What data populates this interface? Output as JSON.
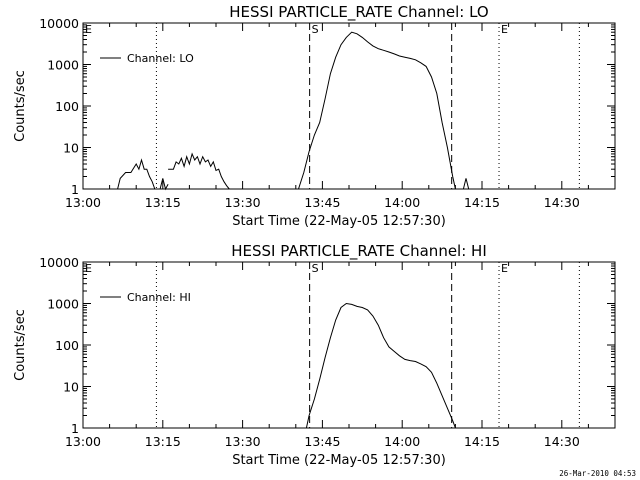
{
  "chart_data": [
    {
      "type": "line",
      "title": "HESSI PARTICLE_RATE Channel: LO",
      "xlabel": "Start Time (22-May-05 12:57:30)",
      "ylabel": "Counts/sec",
      "x_unit": "minutes since 13:00",
      "xlim": [
        0,
        100
      ],
      "ylim": [
        1,
        10000
      ],
      "yscale": "log",
      "xticks": [
        0,
        15,
        30,
        45,
        60,
        75,
        90
      ],
      "xtick_labels": [
        "13:00",
        "13:15",
        "13:30",
        "13:45",
        "14:00",
        "14:15",
        "14:30"
      ],
      "yticks": [
        1,
        10,
        100,
        1000,
        10000
      ],
      "ytick_labels": [
        "1",
        "10",
        "100",
        "1000",
        "10000"
      ],
      "legend": {
        "label": "Channel: LO",
        "position": "top-left"
      },
      "markers": [
        {
          "label": "E",
          "x": 0,
          "style": "dotted"
        },
        {
          "label": "",
          "x": 13.8,
          "style": "dotted"
        },
        {
          "label": "S",
          "x": 42.6,
          "style": "dashed"
        },
        {
          "label": "",
          "x": 69.3,
          "style": "dashed"
        },
        {
          "label": "E",
          "x": 78.2,
          "style": "dotted"
        },
        {
          "label": "",
          "x": 93.3,
          "style": "dotted"
        }
      ],
      "series": [
        {
          "name": "Channel: LO",
          "segments": [
            [
              [
                6.5,
                1
              ],
              [
                7,
                1.8
              ],
              [
                8,
                2.5
              ],
              [
                9,
                2.5
              ],
              [
                10,
                4
              ],
              [
                10.5,
                3
              ],
              [
                11,
                5
              ],
              [
                11.5,
                3
              ],
              [
                12,
                3
              ],
              [
                12.5,
                2
              ],
              [
                13,
                1.5
              ],
              [
                13.5,
                1
              ],
              [
                14.5,
                1
              ],
              [
                15,
                1.8
              ],
              [
                15.5,
                1
              ],
              [
                16,
                1.3
              ]
            ],
            [
              [
                16,
                3
              ],
              [
                17,
                3
              ],
              [
                17.5,
                4.5
              ],
              [
                18,
                4
              ],
              [
                18.5,
                5.5
              ],
              [
                19,
                3.5
              ],
              [
                19.5,
                6
              ],
              [
                20,
                4
              ],
              [
                20.5,
                7
              ],
              [
                21,
                5
              ],
              [
                21.5,
                6
              ],
              [
                22,
                4
              ],
              [
                22.5,
                6
              ],
              [
                23,
                4.5
              ],
              [
                23.5,
                5
              ],
              [
                24,
                3.5
              ],
              [
                24.5,
                4.5
              ],
              [
                25,
                2.8
              ],
              [
                25.5,
                3
              ],
              [
                26,
                2
              ],
              [
                26.5,
                1.5
              ],
              [
                27,
                1.2
              ],
              [
                27.5,
                1
              ]
            ],
            [
              [
                40.5,
                1
              ],
              [
                41.5,
                2.5
              ],
              [
                42.5,
                8
              ],
              [
                43.5,
                20
              ],
              [
                44.5,
                40
              ],
              [
                45.5,
                150
              ],
              [
                46.5,
                600
              ],
              [
                47.5,
                1500
              ],
              [
                48.5,
                3000
              ],
              [
                49.5,
                4500
              ],
              [
                50.5,
                6000
              ],
              [
                51.5,
                5500
              ],
              [
                52.5,
                4500
              ],
              [
                53.5,
                3500
              ],
              [
                54.5,
                2800
              ],
              [
                55.5,
                2400
              ],
              [
                56.5,
                2200
              ],
              [
                57.5,
                2000
              ],
              [
                58.5,
                1800
              ],
              [
                59.5,
                1600
              ],
              [
                60.5,
                1500
              ],
              [
                61.5,
                1400
              ],
              [
                62.5,
                1300
              ],
              [
                63.5,
                1100
              ],
              [
                64.5,
                900
              ],
              [
                65.5,
                500
              ],
              [
                66.5,
                200
              ],
              [
                67.5,
                40
              ],
              [
                68.5,
                10
              ],
              [
                69.5,
                2
              ],
              [
                70,
                1
              ]
            ],
            [
              [
                71.5,
                1
              ],
              [
                72,
                1.8
              ],
              [
                72.5,
                1
              ]
            ]
          ]
        }
      ]
    },
    {
      "type": "line",
      "title": "HESSI PARTICLE_RATE Channel: HI",
      "xlabel": "Start Time (22-May-05 12:57:30)",
      "ylabel": "Counts/sec",
      "x_unit": "minutes since 13:00",
      "xlim": [
        0,
        100
      ],
      "ylim": [
        1,
        10000
      ],
      "yscale": "log",
      "xticks": [
        0,
        15,
        30,
        45,
        60,
        75,
        90
      ],
      "xtick_labels": [
        "13:00",
        "13:15",
        "13:30",
        "13:45",
        "14:00",
        "14:15",
        "14:30"
      ],
      "yticks": [
        1,
        10,
        100,
        1000,
        10000
      ],
      "ytick_labels": [
        "1",
        "10",
        "100",
        "1000",
        "10000"
      ],
      "legend": {
        "label": "Channel: HI",
        "position": "top-left"
      },
      "markers": [
        {
          "label": "E",
          "x": 0,
          "style": "dotted"
        },
        {
          "label": "",
          "x": 13.8,
          "style": "dotted"
        },
        {
          "label": "S",
          "x": 42.6,
          "style": "dashed"
        },
        {
          "label": "",
          "x": 69.3,
          "style": "dashed"
        },
        {
          "label": "E",
          "x": 78.2,
          "style": "dotted"
        },
        {
          "label": "",
          "x": 93.3,
          "style": "dotted"
        }
      ],
      "series": [
        {
          "name": "Channel: HI",
          "segments": [
            [
              [
                42,
                1
              ],
              [
                42.5,
                2
              ],
              [
                43.5,
                5
              ],
              [
                44.5,
                15
              ],
              [
                45.5,
                50
              ],
              [
                46.5,
                150
              ],
              [
                47.5,
                400
              ],
              [
                48.5,
                800
              ],
              [
                49.5,
                1000
              ],
              [
                50.5,
                950
              ],
              [
                51.5,
                850
              ],
              [
                52.5,
                800
              ],
              [
                53.5,
                700
              ],
              [
                54.5,
                500
              ],
              [
                55.5,
                300
              ],
              [
                56.5,
                150
              ],
              [
                57.5,
                90
              ],
              [
                58.5,
                70
              ],
              [
                59.5,
                55
              ],
              [
                60.5,
                45
              ],
              [
                61.5,
                42
              ],
              [
                62.5,
                40
              ],
              [
                63.5,
                35
              ],
              [
                64.5,
                30
              ],
              [
                65.5,
                22
              ],
              [
                66.5,
                12
              ],
              [
                67.5,
                6
              ],
              [
                68.5,
                3
              ],
              [
                69.5,
                1.5
              ],
              [
                70,
                1
              ]
            ]
          ]
        }
      ]
    }
  ],
  "footer": {
    "timestamp": "26-Mar-2010 04:53"
  }
}
